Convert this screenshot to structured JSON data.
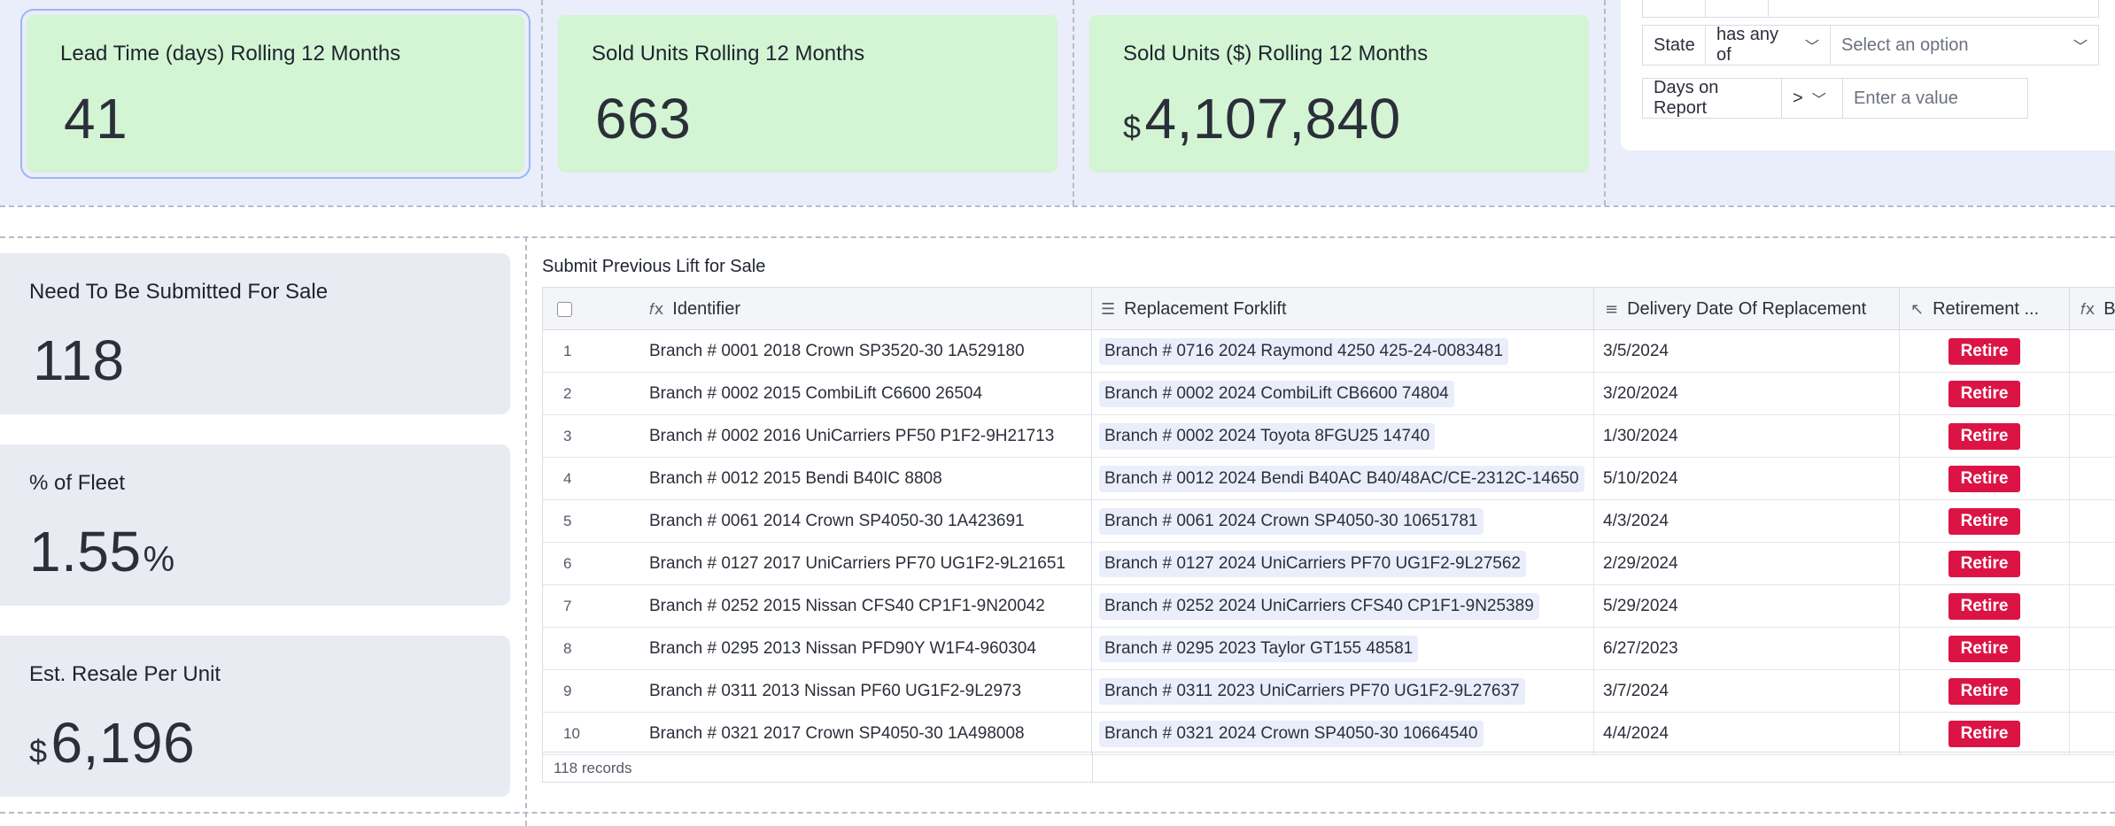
{
  "kpis_top": [
    {
      "title": "Lead Time (days) Rolling 12 Months",
      "value": "41",
      "prefix": "",
      "suffix": ""
    },
    {
      "title": "Sold Units Rolling 12 Months",
      "value": "663",
      "prefix": "",
      "suffix": ""
    },
    {
      "title": "Sold Units ($) Rolling 12 Months",
      "value": "4,107,840",
      "prefix": "$",
      "suffix": ""
    }
  ],
  "filters": {
    "state": {
      "field": "State",
      "operator": "has any of",
      "placeholder": "Select an option"
    },
    "days_on_report": {
      "field": "Days on Report",
      "operator": ">",
      "placeholder": "Enter a value"
    }
  },
  "kpis_left": [
    {
      "title": "Need To Be Submitted For Sale",
      "value": "118",
      "prefix": "",
      "suffix": ""
    },
    {
      "title": "% of Fleet",
      "value": "1.55",
      "prefix": "",
      "suffix": "%"
    },
    {
      "title": "Est. Resale Per Unit",
      "value": "6,196",
      "prefix": "$",
      "suffix": ""
    }
  ],
  "table": {
    "title": "Submit Previous Lift for Sale",
    "columns": {
      "identifier": "Identifier",
      "replacement": "Replacement Forklift",
      "delivery": "Delivery Date Of Replacement",
      "retirement": "Retirement ...",
      "b": "B"
    },
    "rows": [
      {
        "num": "1",
        "identifier": "Branch # 0001 2018 Crown SP3520-30 1A529180",
        "replacement": "Branch # 0716 2024 Raymond 4250 425-24-0083481",
        "delivery": "3/5/2024",
        "action": "Retire"
      },
      {
        "num": "2",
        "identifier": "Branch # 0002 2015 CombiLift C6600 26504",
        "replacement": "Branch # 0002 2024 CombiLift CB6600 74804",
        "delivery": "3/20/2024",
        "action": "Retire"
      },
      {
        "num": "3",
        "identifier": "Branch # 0002 2016 UniCarriers PF50 P1F2-9H21713",
        "replacement": "Branch # 0002 2024 Toyota 8FGU25 14740",
        "delivery": "1/30/2024",
        "action": "Retire"
      },
      {
        "num": "4",
        "identifier": "Branch # 0012 2015 Bendi B40IC 8808",
        "replacement": "Branch # 0012 2024 Bendi B40AC B40/48AC/CE-2312C-14650",
        "delivery": "5/10/2024",
        "action": "Retire"
      },
      {
        "num": "5",
        "identifier": "Branch # 0061 2014 Crown SP4050-30 1A423691",
        "replacement": "Branch # 0061 2024 Crown SP4050-30 10651781",
        "delivery": "4/3/2024",
        "action": "Retire"
      },
      {
        "num": "6",
        "identifier": "Branch # 0127 2017 UniCarriers PF70 UG1F2-9L21651",
        "replacement": "Branch # 0127 2024 UniCarriers PF70 UG1F2-9L27562",
        "delivery": "2/29/2024",
        "action": "Retire"
      },
      {
        "num": "7",
        "identifier": "Branch # 0252 2015 Nissan CFS40 CP1F1-9N20042",
        "replacement": "Branch # 0252 2024 UniCarriers CFS40 CP1F1-9N25389",
        "delivery": "5/29/2024",
        "action": "Retire"
      },
      {
        "num": "8",
        "identifier": "Branch # 0295 2013 Nissan PFD90Y W1F4-960304",
        "replacement": "Branch # 0295 2023 Taylor GT155 48581",
        "delivery": "6/27/2023",
        "action": "Retire"
      },
      {
        "num": "9",
        "identifier": "Branch # 0311 2013 Nissan PF60 UG1F2-9L2973",
        "replacement": "Branch # 0311 2023 UniCarriers PF70 UG1F2-9L27637",
        "delivery": "3/7/2024",
        "action": "Retire"
      },
      {
        "num": "10",
        "identifier": "Branch # 0321 2017 Crown SP4050-30 1A498008",
        "replacement": "Branch # 0321 2024 Crown SP4050-30 10664540",
        "delivery": "4/4/2024",
        "action": "Retire"
      }
    ],
    "record_count": "118 records"
  },
  "colors": {
    "kpi_green": "#d3f5d3",
    "kpi_gray": "#e9ebf2",
    "band": "#eaedfa",
    "retire": "#dc1446",
    "selection": "#9bb7ef"
  }
}
